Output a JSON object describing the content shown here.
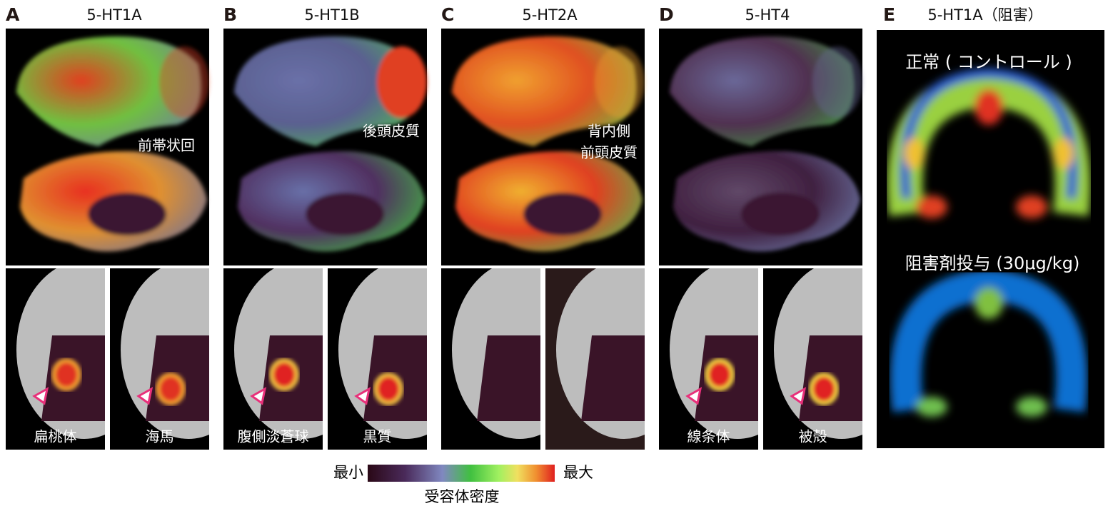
{
  "panels": [
    {
      "letter": "A",
      "title": "5-HT1A",
      "annotation": [
        "前帯状回"
      ],
      "slice_labels": [
        "扁桃体",
        "海馬"
      ]
    },
    {
      "letter": "B",
      "title": "5-HT1B",
      "annotation": [
        "後頭皮質"
      ],
      "slice_labels": [
        "腹側淡蒼球",
        "黒質"
      ]
    },
    {
      "letter": "C",
      "title": "5-HT2A",
      "annotation": [
        "背内側",
        "前頭皮質"
      ]
    },
    {
      "letter": "D",
      "title": "5-HT4",
      "slice_labels": [
        "線条体",
        "被殻"
      ]
    }
  ],
  "panel_e": {
    "letter": "E",
    "title": "5-HT1A（阻害）",
    "control_label": "正常 ( コントロール )",
    "blocked_label": "阻害剤投与 (30μg/kg)"
  },
  "colorbar": {
    "min_label": "最小",
    "max_label": "最大",
    "title": "受容体密度"
  }
}
